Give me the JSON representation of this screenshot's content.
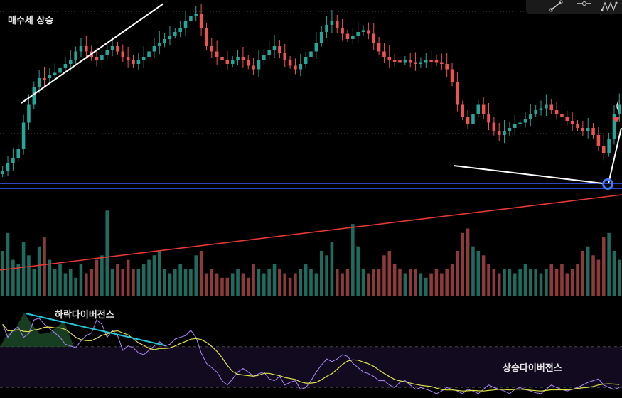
{
  "labels": {
    "buy_trend": "매수세 상승",
    "bearish_div": "하락다이버전스",
    "bullish_div": "상승다이버전스",
    "partial_mark": "("
  },
  "colors": {
    "background": "#000000",
    "up": "#26a69a",
    "down": "#ef5350",
    "up_volume": "#1f6b5f",
    "down_volume": "#8c3a3a",
    "support_line": "#3d5afe",
    "long_trend": "#e53935",
    "trend_lines": "#ffffff",
    "rsi": "#b388ff",
    "rsi_ma": "#e0e04a",
    "divergence_line": "#26c6da",
    "marker": "#3d7bff",
    "heart": "#ef5350"
  },
  "toolbar": {
    "icons": [
      "trendline-icon",
      "horizontal-ray-icon",
      "pattern-icon"
    ]
  },
  "chart_data": {
    "type": "candlestick",
    "title": "",
    "xlabel": "",
    "ylabel": "",
    "panels": [
      "price",
      "volume",
      "rsi"
    ],
    "price_shape": [
      0.92,
      0.88,
      0.85,
      0.8,
      0.65,
      0.55,
      0.45,
      0.4,
      0.4,
      0.38,
      0.37,
      0.34,
      0.32,
      0.3,
      0.25,
      0.22,
      0.25,
      0.28,
      0.3,
      0.27,
      0.24,
      0.22,
      0.25,
      0.28,
      0.3,
      0.32,
      0.3,
      0.28,
      0.25,
      0.22,
      0.2,
      0.18,
      0.16,
      0.14,
      0.12,
      0.08,
      0.05,
      0.04,
      0.12,
      0.22,
      0.25,
      0.28,
      0.3,
      0.32,
      0.3,
      0.28,
      0.3,
      0.33,
      0.35,
      0.3,
      0.27,
      0.24,
      0.22,
      0.26,
      0.3,
      0.33,
      0.35,
      0.32,
      0.28,
      0.25,
      0.2,
      0.14,
      0.1,
      0.08,
      0.12,
      0.15,
      0.18,
      0.16,
      0.14,
      0.13,
      0.15,
      0.2,
      0.25,
      0.28,
      0.3,
      0.3,
      0.31,
      0.3,
      0.31,
      0.32,
      0.31,
      0.3,
      0.3,
      0.31,
      0.32,
      0.35,
      0.42,
      0.55,
      0.62,
      0.66,
      0.6,
      0.55,
      0.6,
      0.65,
      0.7,
      0.72,
      0.7,
      0.68,
      0.66,
      0.65,
      0.63,
      0.6,
      0.58,
      0.57,
      0.55,
      0.58,
      0.6,
      0.62,
      0.64,
      0.66,
      0.68,
      0.7,
      0.68,
      0.72,
      0.78,
      0.82,
      0.74,
      0.6,
      0.55
    ],
    "volume_shape": [
      0.5,
      0.7,
      0.4,
      0.35,
      0.6,
      0.45,
      0.3,
      0.55,
      0.65,
      0.4,
      0.3,
      0.35,
      0.25,
      0.3,
      0.2,
      0.35,
      0.25,
      0.3,
      0.4,
      0.45,
      0.95,
      0.3,
      0.35,
      0.3,
      0.4,
      0.3,
      0.3,
      0.35,
      0.4,
      0.45,
      0.5,
      0.3,
      0.25,
      0.3,
      0.35,
      0.3,
      0.3,
      0.45,
      0.5,
      0.25,
      0.3,
      0.25,
      0.2,
      0.2,
      0.25,
      0.3,
      0.25,
      0.2,
      0.35,
      0.3,
      0.25,
      0.3,
      0.35,
      0.3,
      0.25,
      0.2,
      0.25,
      0.3,
      0.35,
      0.3,
      0.25,
      0.5,
      0.45,
      0.6,
      0.3,
      0.25,
      0.3,
      0.8,
      0.55,
      0.3,
      0.25,
      0.3,
      0.3,
      0.45,
      0.5,
      0.35,
      0.3,
      0.25,
      0.3,
      0.3,
      0.25,
      0.2,
      0.25,
      0.3,
      0.25,
      0.3,
      0.35,
      0.5,
      0.7,
      0.75,
      0.55,
      0.5,
      0.45,
      0.35,
      0.3,
      0.25,
      0.3,
      0.3,
      0.25,
      0.3,
      0.35,
      0.3,
      0.3,
      0.25,
      0.3,
      0.35,
      0.3,
      0.35,
      0.25,
      0.3,
      0.35,
      0.5,
      0.55,
      0.45,
      0.4,
      0.65,
      0.7,
      0.5,
      0.4
    ],
    "rsi_shape": [
      0.85,
      0.7,
      0.78,
      0.82,
      0.7,
      0.74,
      0.9,
      0.92,
      0.85,
      0.8,
      0.75,
      0.7,
      0.62,
      0.6,
      0.58,
      0.66,
      0.72,
      0.75,
      0.9,
      0.85,
      0.7,
      0.78,
      0.72,
      0.55,
      0.6,
      0.58,
      0.52,
      0.5,
      0.55,
      0.6,
      0.65,
      0.6,
      0.62,
      0.68,
      0.7,
      0.72,
      0.78,
      0.7,
      0.52,
      0.4,
      0.35,
      0.3,
      0.2,
      0.15,
      0.22,
      0.3,
      0.34,
      0.3,
      0.25,
      0.28,
      0.3,
      0.22,
      0.2,
      0.25,
      0.15,
      0.18,
      0.2,
      0.1,
      0.12,
      0.2,
      0.3,
      0.38,
      0.45,
      0.42,
      0.45,
      0.5,
      0.48,
      0.4,
      0.35,
      0.3,
      0.28,
      0.25,
      0.2,
      0.2,
      0.15,
      0.12,
      0.18,
      0.2,
      0.15,
      0.1,
      0.12,
      0.1,
      0.08,
      0.05,
      0.08,
      0.12,
      0.1,
      0.08,
      0.05,
      0.1,
      0.08,
      0.05,
      0.1,
      0.15,
      0.12,
      0.1,
      0.08,
      0.05,
      0.1,
      0.12,
      0.1,
      0.08,
      0.06,
      0.05,
      0.1,
      0.15,
      0.12,
      0.1,
      0.08,
      0.1,
      0.12,
      0.15,
      0.18,
      0.2,
      0.22,
      0.15,
      0.12,
      0.1,
      0.12
    ]
  }
}
